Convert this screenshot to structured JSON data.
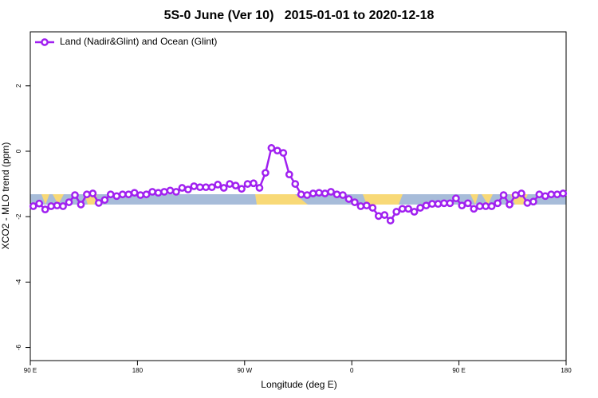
{
  "chart_data": {
    "type": "line",
    "title": "5S-0 June (Ver 10)   2015-01-01 to 2020-12-18",
    "xlabel": "Longitude (deg E)",
    "ylabel": "XCO2 - MLO trend (ppm)",
    "x": [
      92.5,
      97.5,
      102.5,
      107.5,
      112.5,
      117.5,
      122.5,
      127.5,
      132.5,
      137.5,
      142.5,
      147.5,
      152.5,
      157.5,
      162.5,
      167.5,
      172.5,
      177.5,
      182.5,
      187.5,
      192.5,
      197.5,
      202.5,
      207.5,
      212.5,
      217.5,
      222.5,
      227.5,
      232.5,
      237.5,
      242.5,
      247.5,
      252.5,
      257.5,
      262.5,
      267.5,
      272.5,
      277.5,
      282.5,
      287.5,
      292.5,
      297.5,
      302.5,
      307.5,
      312.5,
      317.5,
      322.5,
      327.5,
      332.5,
      337.5,
      342.5,
      347.5,
      352.5,
      357.5,
      362.5,
      367.5,
      372.5,
      377.5,
      382.5,
      387.5,
      392.5,
      397.5,
      402.5,
      407.5,
      412.5,
      417.5,
      422.5,
      427.5,
      432.5,
      437.5,
      442.5,
      447.5,
      452.5,
      457.5,
      462.5,
      467.5,
      472.5,
      477.5,
      482.5,
      487.5,
      492.5,
      497.5,
      502.5,
      507.5,
      512.5,
      517.5,
      522.5,
      527.5,
      532.5,
      537.5
    ],
    "series": [
      {
        "name": "Land (Nadir&Glint) and Ocean (Glint)",
        "color": "#a020f0",
        "values": [
          -1.68,
          -1.6,
          -1.78,
          -1.68,
          -1.66,
          -1.68,
          -1.56,
          -1.34,
          -1.63,
          -1.32,
          -1.29,
          -1.58,
          -1.49,
          -1.32,
          -1.37,
          -1.32,
          -1.32,
          -1.27,
          -1.34,
          -1.32,
          -1.24,
          -1.27,
          -1.24,
          -1.2,
          -1.24,
          -1.12,
          -1.17,
          -1.07,
          -1.1,
          -1.1,
          -1.1,
          -1.02,
          -1.12,
          -1.0,
          -1.05,
          -1.15,
          -1.0,
          -0.98,
          -1.12,
          -0.66,
          0.1,
          0.02,
          -0.05,
          -0.71,
          -1.0,
          -1.32,
          -1.34,
          -1.29,
          -1.27,
          -1.29,
          -1.24,
          -1.32,
          -1.34,
          -1.46,
          -1.56,
          -1.68,
          -1.66,
          -1.73,
          -1.98,
          -1.95,
          -2.12,
          -1.85,
          -1.76,
          -1.76,
          -1.85,
          -1.73,
          -1.66,
          -1.61,
          -1.61,
          -1.59,
          -1.59,
          -1.44,
          -1.66,
          -1.59,
          -1.76,
          -1.68,
          -1.68,
          -1.68,
          -1.59,
          -1.34,
          -1.63,
          -1.34,
          -1.29,
          -1.58,
          -1.54,
          -1.32,
          -1.37,
          -1.32,
          -1.32,
          -1.29
        ]
      }
    ],
    "xlim": [
      90,
      540
    ],
    "xticks": [
      {
        "value": 90,
        "label": "90 E"
      },
      180,
      {
        "value": 270,
        "label": "90 W"
      },
      {
        "value": 360,
        "label": "0"
      },
      {
        "value": 450,
        "label": "90 E"
      },
      {
        "value": 540,
        "label": "180"
      }
    ],
    "ylim": [
      -6.4,
      3.65
    ],
    "yticks": [
      -6,
      -4,
      -2,
      0,
      2
    ],
    "legend": "top-left"
  }
}
